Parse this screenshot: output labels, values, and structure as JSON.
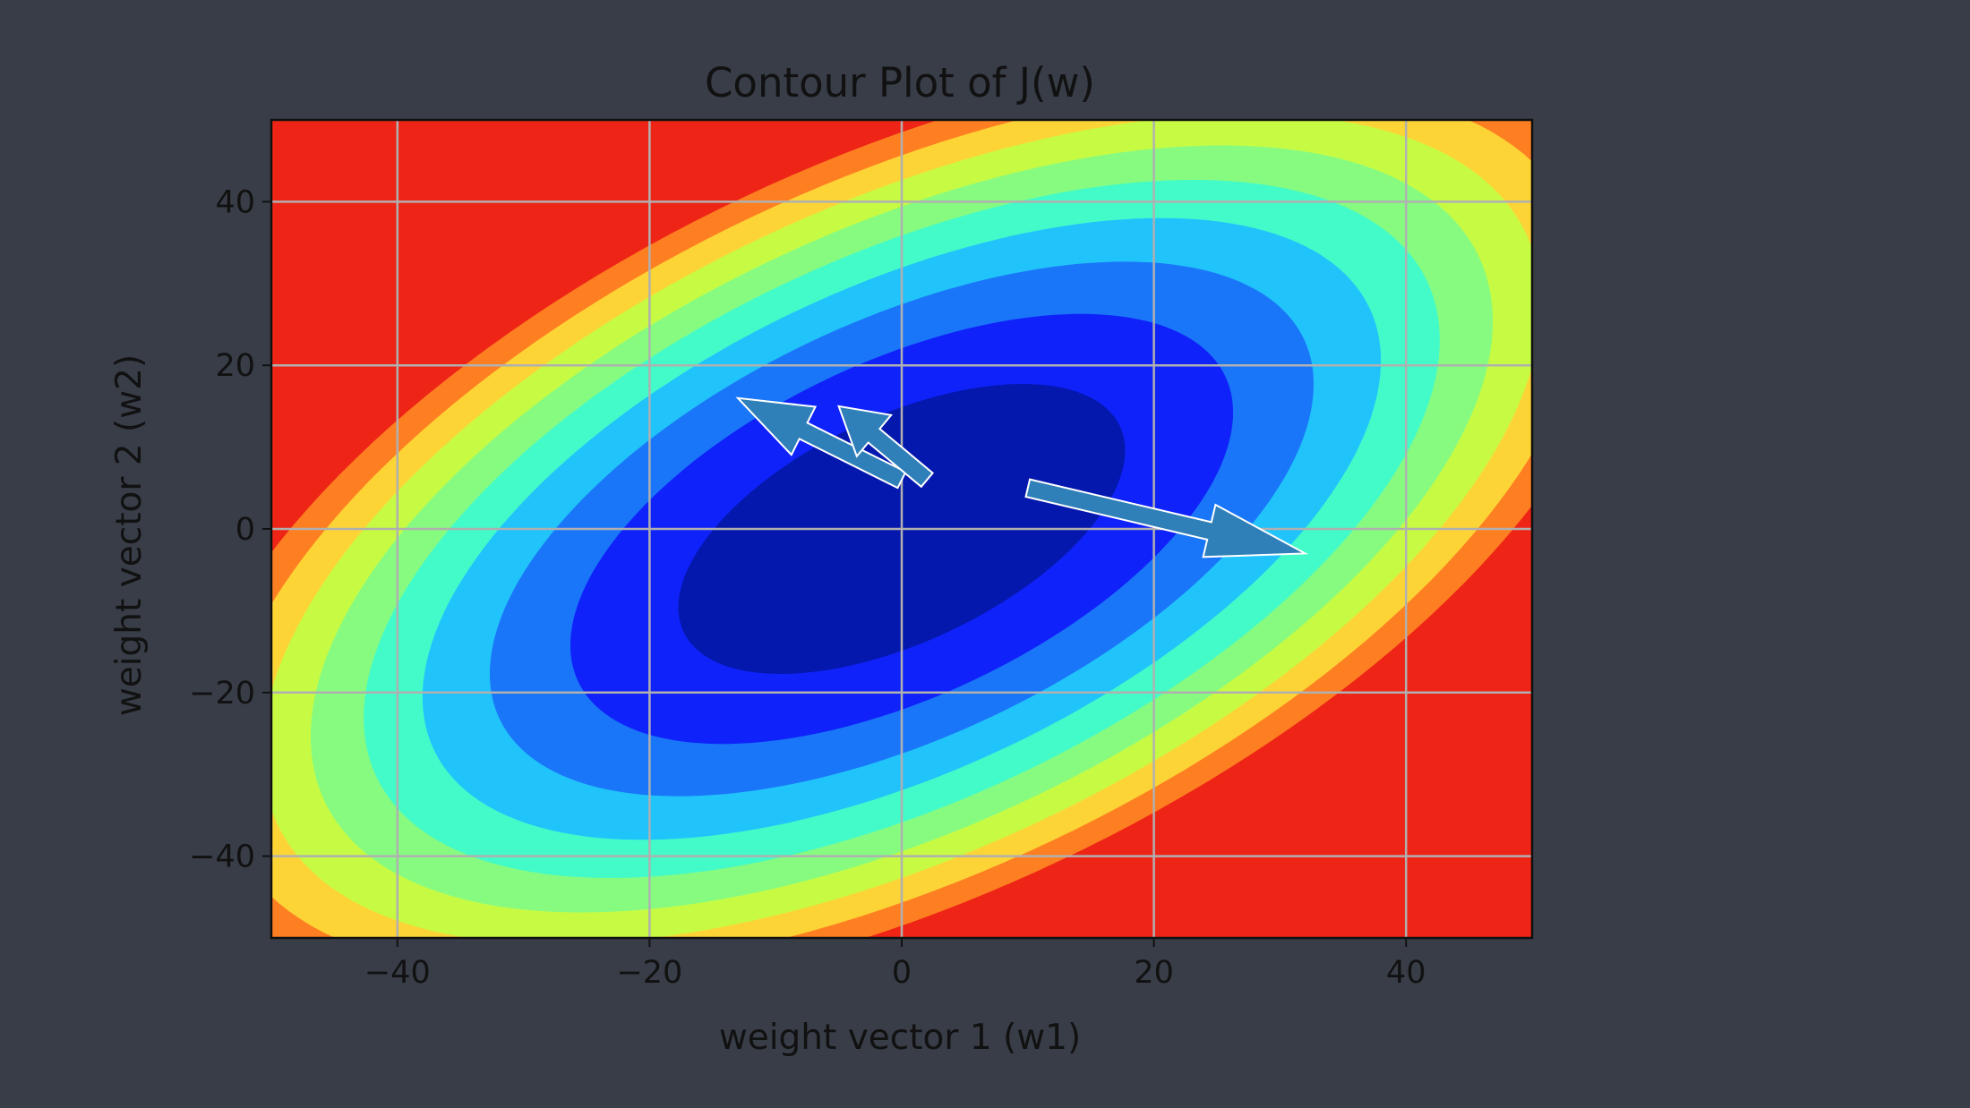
{
  "chart_data": {
    "type": "contour",
    "title": "Contour Plot of J(w)",
    "xlabel": "weight vector 1 (w1)",
    "ylabel": "weight vector 2 (w2)",
    "xlim": [
      -50,
      50
    ],
    "ylim": [
      -50,
      50
    ],
    "xticks": [
      -40,
      -20,
      0,
      20,
      40
    ],
    "yticks": [
      -40,
      -20,
      0,
      20,
      40
    ],
    "grid": true,
    "colormap": "jet",
    "surface": {
      "function": "J(w1,w2) quadratic bowl centered at origin, elongated along w2 = w1",
      "levels": [
        0,
        0.25,
        0.55,
        0.85,
        1.15,
        1.45,
        1.75,
        2.05,
        2.35,
        2.65,
        5
      ]
    },
    "level_colors": [
      "#0418ad",
      "#0f22fa",
      "#1a76f8",
      "#21c3fb",
      "#43fbc8",
      "#87fb80",
      "#c7fb43",
      "#fdd436",
      "#fe7f22",
      "#ee2516"
    ],
    "arrows": [
      {
        "from": [
          0,
          6
        ],
        "to": [
          -13,
          16
        ],
        "color": "#2f7fb8"
      },
      {
        "from": [
          2,
          6
        ],
        "to": [
          -5,
          15
        ],
        "color": "#2f7fb8"
      },
      {
        "from": [
          10,
          5
        ],
        "to": [
          32,
          -3
        ],
        "color": "#2f7fb8"
      }
    ],
    "tick_labels_x": [
      "−40",
      "−20",
      "0",
      "20",
      "40"
    ],
    "tick_labels_y": [
      "−40",
      "−20",
      "0",
      "20",
      "40"
    ]
  }
}
